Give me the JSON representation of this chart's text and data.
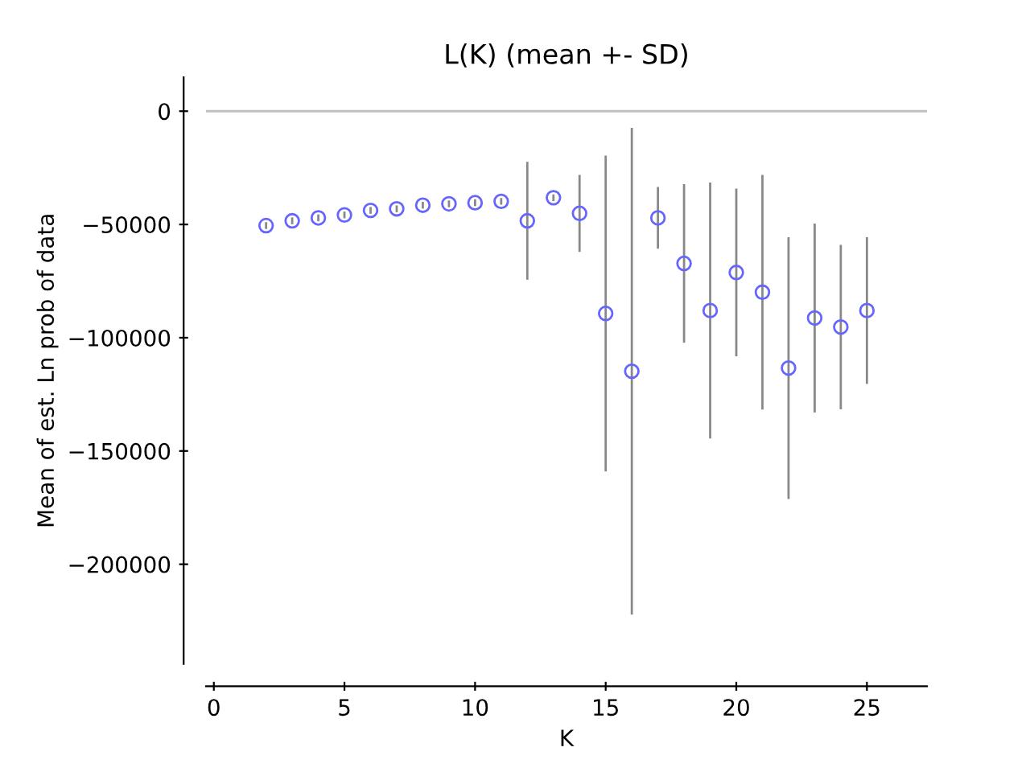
{
  "chart_data": {
    "type": "scatter",
    "title": "L(K) (mean +- SD)",
    "xlabel": "K",
    "ylabel": "Mean of est. Ln prob of data",
    "x": [
      2,
      3,
      4,
      5,
      6,
      7,
      8,
      9,
      10,
      11,
      12,
      13,
      14,
      15,
      16,
      17,
      18,
      19,
      20,
      21,
      22,
      23,
      24,
      25
    ],
    "series": [
      {
        "color": "#6666ff",
        "values": [
          -50500,
          -48400,
          -47100,
          -45800,
          -43800,
          -43100,
          -41500,
          -40900,
          -40400,
          -39800,
          -48400,
          -38200,
          -45100,
          -89300,
          -114800,
          -47100,
          -67200,
          -88000,
          -71200,
          -79900,
          -113400,
          -91300,
          -95300,
          -88000
        ],
        "errors": [
          1500,
          1500,
          1500,
          1500,
          1500,
          1500,
          1500,
          1500,
          1500,
          1500,
          26000,
          1500,
          17000,
          69700,
          107400,
          13600,
          35000,
          56500,
          37000,
          51800,
          57800,
          41700,
          36300,
          32400
        ]
      }
    ],
    "xlim": [
      -0.3,
      27.3
    ],
    "xticks": [
      0,
      5,
      10,
      15,
      20,
      25
    ],
    "ylim": [
      -244000,
      15000
    ],
    "yticks": [
      0,
      {
        "value": -50000,
        "label": "−50000"
      },
      {
        "value": -100000,
        "label": "−100000"
      },
      {
        "value": -150000,
        "label": "−150000"
      },
      {
        "value": -200000,
        "label": "−200000"
      }
    ],
    "ref_lines": [
      {
        "axis": "y",
        "value": 0,
        "color": "#c0c0c0"
      }
    ],
    "marker": "circle",
    "grid": false,
    "legend": false
  }
}
